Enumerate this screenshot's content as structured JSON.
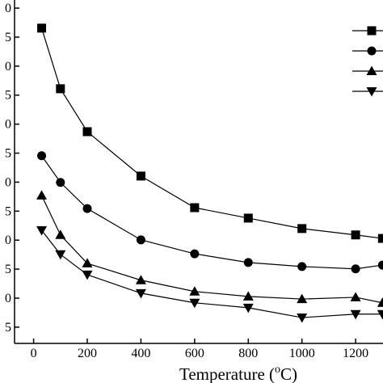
{
  "chart_data": {
    "type": "line",
    "x_label": [
      "Temperature (",
      "o",
      "C)"
    ],
    "xlim": [
      -71,
      1302
    ],
    "xticks": [
      0,
      200,
      400,
      600,
      800,
      1000,
      1200
    ],
    "ylim": [
      -0.56,
      11.28
    ],
    "yticks": [
      {
        "value": 0,
        "label": "5"
      },
      {
        "value": 1,
        "label": "0"
      },
      {
        "value": 2,
        "label": "5"
      },
      {
        "value": 3,
        "label": "0"
      },
      {
        "value": 4,
        "label": "5"
      },
      {
        "value": 5,
        "label": "0"
      },
      {
        "value": 6,
        "label": "5"
      },
      {
        "value": 7,
        "label": "0"
      },
      {
        "value": 8,
        "label": "5"
      },
      {
        "value": 9,
        "label": "0"
      },
      {
        "value": 10,
        "label": "5"
      },
      {
        "value": 11,
        "label": "0"
      }
    ],
    "x": [
      30,
      100,
      200,
      400,
      600,
      800,
      1000,
      1200,
      1300
    ],
    "series": [
      {
        "marker": "square",
        "color": "#000000",
        "values": [
          10.31,
          8.22,
          6.74,
          5.21,
          4.12,
          3.76,
          3.4,
          3.18,
          3.06
        ]
      },
      {
        "marker": "circle",
        "color": "#000000",
        "values": [
          5.91,
          4.99,
          4.09,
          3.01,
          2.53,
          2.23,
          2.09,
          2.01,
          2.14
        ]
      },
      {
        "marker": "triangle-up",
        "color": "#000000",
        "values": [
          4.54,
          3.18,
          2.2,
          1.62,
          1.23,
          1.06,
          0.97,
          1.03,
          0.84
        ]
      },
      {
        "marker": "triangle-down",
        "color": "#000000",
        "values": [
          3.34,
          2.51,
          1.81,
          1.17,
          0.84,
          0.67,
          0.33,
          0.45,
          0.45
        ]
      }
    ],
    "legend": "upper right"
  }
}
